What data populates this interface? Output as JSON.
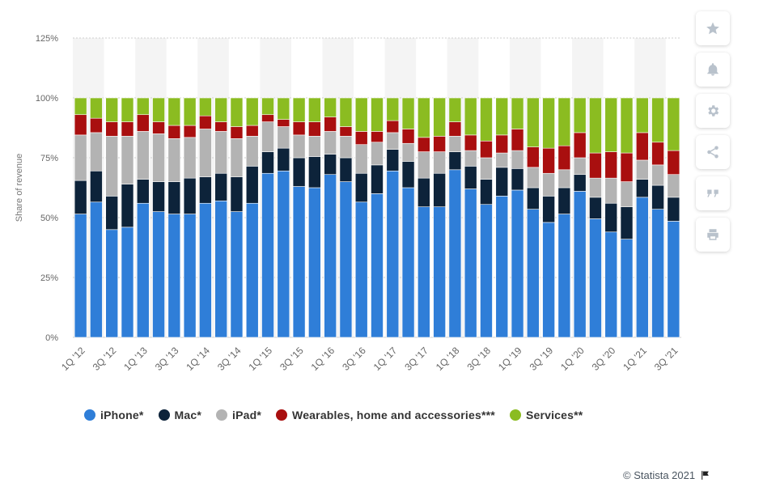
{
  "chart_data": {
    "type": "bar",
    "stacked": true,
    "title": "",
    "xlabel": "",
    "ylabel": "Share of revenue",
    "ylim": [
      0,
      125
    ],
    "yticks": [
      "0%",
      "25%",
      "50%",
      "75%",
      "100%",
      "125%"
    ],
    "categories": [
      "1Q '12",
      "2Q '12",
      "3Q '12",
      "4Q '12",
      "1Q '13",
      "2Q '13",
      "3Q '13",
      "4Q '13",
      "1Q '14",
      "2Q '14",
      "3Q '14",
      "4Q '14",
      "1Q '15",
      "2Q '15",
      "3Q '15",
      "4Q '15",
      "1Q '16",
      "2Q '16",
      "3Q '16",
      "4Q '16",
      "1Q '17",
      "2Q '17",
      "3Q '17",
      "4Q '17",
      "1Q '18",
      "2Q '18",
      "3Q '18",
      "4Q '18",
      "1Q '19",
      "2Q '19",
      "3Q '19",
      "4Q '19",
      "1Q '20",
      "2Q '20",
      "3Q '20",
      "4Q '20",
      "1Q '21",
      "2Q '21",
      "3Q '21"
    ],
    "visible_tick_labels": [
      "1Q '12",
      "3Q '12",
      "1Q '13",
      "3Q '13",
      "1Q '14",
      "3Q '14",
      "1Q '15",
      "3Q '15",
      "1Q '16",
      "3Q '16",
      "1Q '17",
      "3Q '17",
      "1Q '18",
      "3Q '18",
      "1Q '19",
      "3Q '19",
      "1Q '20",
      "3Q '20",
      "1Q '21",
      "3Q '21"
    ],
    "series": [
      {
        "name": "iPhone*",
        "color": "#2f7ed8",
        "values": [
          51.5,
          56.5,
          45,
          46,
          56,
          52.5,
          51.5,
          51.5,
          56,
          57,
          52.5,
          56,
          68.5,
          69.5,
          63,
          62.5,
          68,
          65,
          56.5,
          60,
          69.5,
          62.5,
          54.5,
          54.5,
          70,
          62,
          55.5,
          59,
          61.5,
          53.5,
          48,
          51.5,
          61,
          49.5,
          44,
          41,
          58.5,
          53.5,
          48.5
        ]
      },
      {
        "name": "Mac*",
        "color": "#0d233a",
        "values": [
          14,
          13,
          14,
          18,
          10,
          12.5,
          13.5,
          15,
          11,
          11.5,
          14.5,
          15.5,
          9,
          9.5,
          12,
          13,
          8.5,
          10,
          12,
          12,
          9,
          11,
          12,
          14,
          7.5,
          9.5,
          10.5,
          12,
          9,
          9,
          11,
          11,
          7,
          9,
          12,
          13.5,
          7.5,
          10,
          10
        ]
      },
      {
        "name": "iPad*",
        "color": "#b3b3b3",
        "values": [
          19,
          16,
          25,
          20,
          20,
          20,
          18,
          17,
          20,
          17.5,
          16,
          12.5,
          12.5,
          9,
          9.5,
          8.5,
          9.5,
          9,
          12,
          9.5,
          7,
          7.5,
          11,
          9,
          6.5,
          6.5,
          9,
          6,
          7.5,
          8.5,
          9.5,
          7.5,
          7,
          8,
          10.5,
          10.5,
          8,
          8.5,
          9.5
        ]
      },
      {
        "name": "Wearables, home and accessories***",
        "color": "#a90f0f",
        "values": [
          8.5,
          6,
          6,
          6,
          7,
          5,
          5.5,
          5,
          5.5,
          4,
          5,
          4.5,
          3,
          3,
          5.5,
          6,
          6,
          4,
          5.5,
          4.5,
          5,
          6,
          6,
          6.5,
          6,
          6.5,
          7,
          7.5,
          9,
          8.5,
          10.5,
          10,
          10.5,
          10.5,
          11,
          12,
          11.5,
          9.5,
          10
        ]
      },
      {
        "name": "Services**",
        "color": "#8bbc21",
        "values": [
          7,
          8.5,
          10,
          10,
          7,
          10,
          11.5,
          11.5,
          7.5,
          10,
          12,
          11.5,
          7,
          9,
          10,
          10,
          8,
          12,
          14,
          14,
          9.5,
          13,
          16.5,
          16,
          10,
          15.5,
          18,
          15.5,
          13,
          20.5,
          21,
          20,
          14.5,
          23,
          22.5,
          23,
          14.5,
          18.5,
          22
        ]
      }
    ]
  },
  "toolbar": [
    "star-icon",
    "bell-icon",
    "gear-icon",
    "share-icon",
    "quote-icon",
    "print-icon"
  ],
  "credit": "© Statista 2021"
}
